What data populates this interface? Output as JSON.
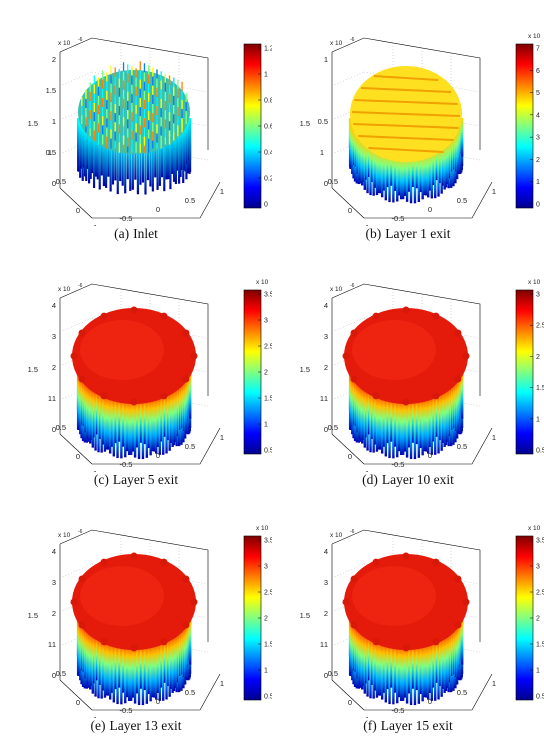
{
  "panels": [
    {
      "tag": "(a)",
      "caption": "Inlet",
      "surface": "spiky",
      "z_exponent_label": "x 10",
      "z_exponent_power": "-6",
      "z_ticks": [
        "2",
        "1.5",
        "1",
        "0.5",
        "0"
      ],
      "y_ticks": [
        "1.5",
        "1",
        "0.5",
        "0"
      ],
      "x_ticks": [
        "-1",
        "-0.5",
        "0",
        "0.5",
        "1"
      ],
      "colorbar_exponent_label": "",
      "colorbar_ticks": [
        "1.2",
        "1",
        "0.8",
        "0.6",
        "0.4",
        "0.2",
        "0"
      ]
    },
    {
      "tag": "(b)",
      "caption": "Layer 1 exit",
      "surface": "striped",
      "z_exponent_label": "x 10",
      "z_exponent_power": "-6",
      "z_ticks": [
        "1",
        "0.5",
        "0"
      ],
      "y_ticks": [
        "1.5",
        "1",
        "0.5",
        "0"
      ],
      "x_ticks": [
        "-1",
        "-0.5",
        "0",
        "0.5",
        "1"
      ],
      "colorbar_exponent_label": "x 10",
      "colorbar_exponent_power": "-6",
      "colorbar_ticks": [
        "7",
        "6",
        "5",
        "4",
        "3",
        "2",
        "1",
        "0"
      ]
    },
    {
      "tag": "(c)",
      "caption": "Layer 5 exit",
      "surface": "dome",
      "z_exponent_label": "x 10",
      "z_exponent_power": "-6",
      "z_ticks": [
        "4",
        "3",
        "2",
        "1",
        "0"
      ],
      "y_ticks": [
        "1.5",
        "1",
        "0.5",
        "0"
      ],
      "x_ticks": [
        "-1",
        "-0.5",
        "0",
        "0.5",
        "1"
      ],
      "colorbar_exponent_label": "x 10",
      "colorbar_exponent_power": "-6",
      "colorbar_ticks": [
        "3.5",
        "3",
        "2.5",
        "2",
        "1.5",
        "1",
        "0.5"
      ]
    },
    {
      "tag": "(d)",
      "caption": "Layer 10 exit",
      "surface": "dome",
      "z_exponent_label": "x 10",
      "z_exponent_power": "-6",
      "z_ticks": [
        "4",
        "3",
        "2",
        "1",
        "0"
      ],
      "y_ticks": [
        "1.5",
        "1",
        "0.5",
        "0"
      ],
      "x_ticks": [
        "-1",
        "-0.5",
        "0",
        "0.5",
        "1"
      ],
      "colorbar_exponent_label": "x 10",
      "colorbar_exponent_power": "-6",
      "colorbar_ticks": [
        "3",
        "2.5",
        "2",
        "1.5",
        "1",
        "0.5"
      ]
    },
    {
      "tag": "(e)",
      "caption": "Layer 13 exit",
      "surface": "dome",
      "z_exponent_label": "x 10",
      "z_exponent_power": "-6",
      "z_ticks": [
        "4",
        "3",
        "2",
        "1",
        "0"
      ],
      "y_ticks": [
        "1.5",
        "1",
        "0.5",
        "0"
      ],
      "x_ticks": [
        "-1",
        "-0.5",
        "0",
        "0.5",
        "1"
      ],
      "colorbar_exponent_label": "x 10",
      "colorbar_exponent_power": "-6",
      "colorbar_ticks": [
        "3.5",
        "3",
        "2.5",
        "2",
        "1.5",
        "1",
        "0.5"
      ]
    },
    {
      "tag": "(f)",
      "caption": "Layer 15 exit",
      "surface": "dome",
      "z_exponent_label": "x 10",
      "z_exponent_power": "-6",
      "z_ticks": [
        "4",
        "3",
        "2",
        "1",
        "0"
      ],
      "y_ticks": [
        "1.5",
        "1",
        "0.5",
        "0"
      ],
      "x_ticks": [
        "-1",
        "-0.5",
        "0",
        "0.5",
        "1"
      ],
      "colorbar_exponent_label": "x 10",
      "colorbar_exponent_power": "-6",
      "colorbar_ticks": [
        "3.5",
        "3",
        "2.5",
        "2",
        "1.5",
        "1",
        "0.5"
      ]
    }
  ],
  "colormap": [
    "#00008f",
    "#0000ff",
    "#0080ff",
    "#00ffff",
    "#80ff80",
    "#ffff00",
    "#ff8000",
    "#ff0000",
    "#800000"
  ]
}
